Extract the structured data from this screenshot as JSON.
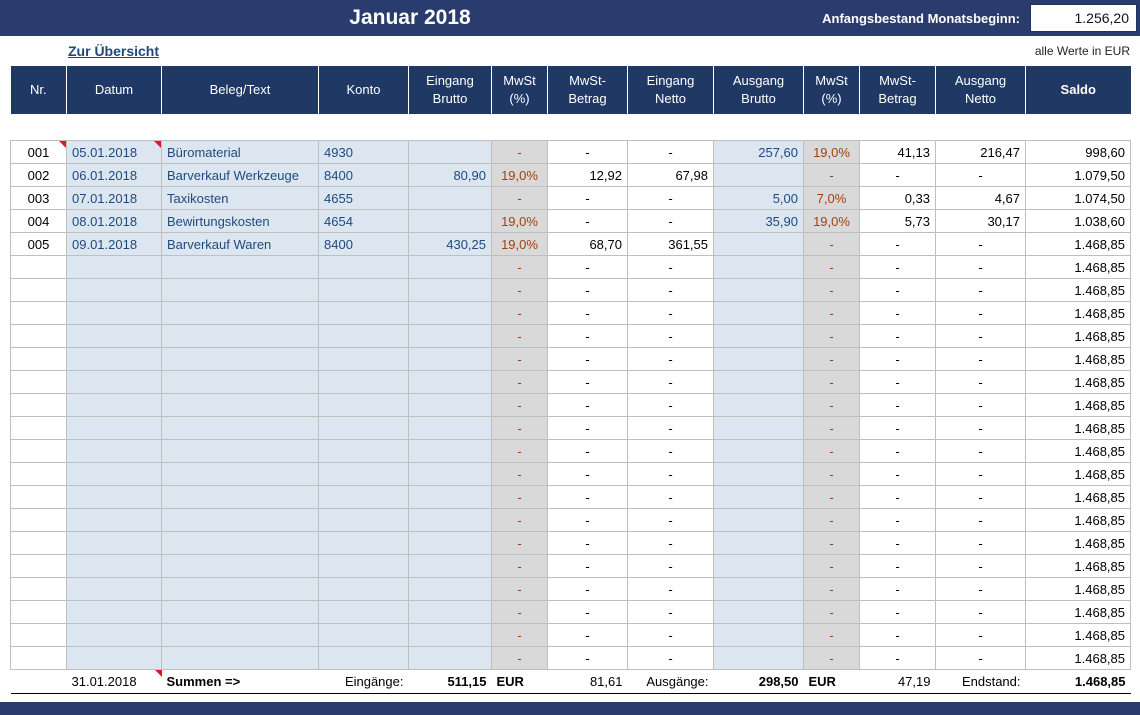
{
  "header": {
    "title": "Januar 2018",
    "opening_balance_label": "Anfangsbestand Monatsbeginn:",
    "opening_balance_value": "1.256,20"
  },
  "toolbar": {
    "back_link": "Zur Übersicht",
    "units_note": "alle Werte in EUR"
  },
  "table": {
    "columns": [
      "Nr.",
      "Datum",
      "Beleg/Text",
      "Konto",
      "Eingang\nBrutto",
      "MwSt\n(%)",
      "MwSt-\nBetrag",
      "Eingang\nNetto",
      "Ausgang\nBrutto",
      "MwSt\n(%)",
      "MwSt-\nBetrag",
      "Ausgang\nNetto",
      "Saldo"
    ],
    "rows": [
      [
        "001",
        "05.01.2018",
        "Büromaterial",
        "4930",
        "",
        "-",
        "-",
        "-",
        "257,60",
        "19,0%",
        "41,13",
        "216,47",
        "998,60"
      ],
      [
        "002",
        "06.01.2018",
        "Barverkauf Werkzeuge",
        "8400",
        "80,90",
        "19,0%",
        "12,92",
        "67,98",
        "",
        "-",
        "-",
        "-",
        "1.079,50"
      ],
      [
        "003",
        "07.01.2018",
        "Taxikosten",
        "4655",
        "",
        "-",
        "-",
        "-",
        "5,00",
        "7,0%",
        "0,33",
        "4,67",
        "1.074,50"
      ],
      [
        "004",
        "08.01.2018",
        "Bewirtungskosten",
        "4654",
        "",
        "19,0%",
        "-",
        "-",
        "35,90",
        "19,0%",
        "5,73",
        "30,17",
        "1.038,60"
      ],
      [
        "005",
        "09.01.2018",
        "Barverkauf Waren",
        "8400",
        "430,25",
        "19,0%",
        "68,70",
        "361,55",
        "",
        "-",
        "-",
        "-",
        "1.468,85"
      ]
    ],
    "empty_row": [
      "",
      "",
      "",
      "",
      "",
      "-",
      "-",
      "-",
      "",
      "-",
      "-",
      "-",
      "1.468,85"
    ],
    "empty_row_count": 18,
    "comment_markers": [
      [
        0,
        0
      ],
      [
        0,
        1
      ]
    ]
  },
  "summary": {
    "date": "31.01.2018",
    "date_has_comment": true,
    "label": "Summen =>",
    "in_label": "Eingänge:",
    "in_value": "511,15",
    "in_currency": "EUR",
    "in_vat": "81,61",
    "out_label": "Ausgänge:",
    "out_value": "298,50",
    "out_currency": "EUR",
    "out_vat": "47,19",
    "end_label": "Endstand:",
    "end_value": "1.468,85"
  },
  "colors": {
    "navy_bar": "#2A3B6E",
    "header_bg": "#1F3864",
    "light_blue_cell": "#DCE6F1",
    "gray_cell": "#D9D9D9",
    "navy_text": "#1F497D",
    "mwst_text": "#A0410D",
    "grid": "#BFBFBF",
    "comment_marker": "#E8112D"
  }
}
